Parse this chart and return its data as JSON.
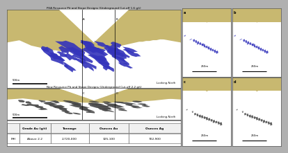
{
  "title_top": "PEA Resource Pit and Stope Designs (Underground Cut-off 1.6 g/t)",
  "title_bottom": "New Resource Pit and Stope Designs (Underground Cut-off 2.2 g/t)",
  "label_a": "a",
  "label_b": "b",
  "label_c": "c",
  "label_d": "d",
  "looking_north": "Looking North",
  "scale_500m": "500m",
  "scale_250m": "250m",
  "border_color": "#555555",
  "table_headers": [
    "",
    "Grade Au (g/t)",
    "Tonnage",
    "Ounces Au",
    "Ounces Ag"
  ],
  "table_row": [
    "MH",
    "Above 2.2",
    "2,720,000",
    "325,100",
    "702,900"
  ],
  "panel_bg": "#c8b870",
  "blue_color": "#3333bb",
  "dark_gray": "#444444",
  "figure_outer_bg": "#b0b0b0",
  "white": "#ffffff",
  "cross_line_color": "#c8b870"
}
